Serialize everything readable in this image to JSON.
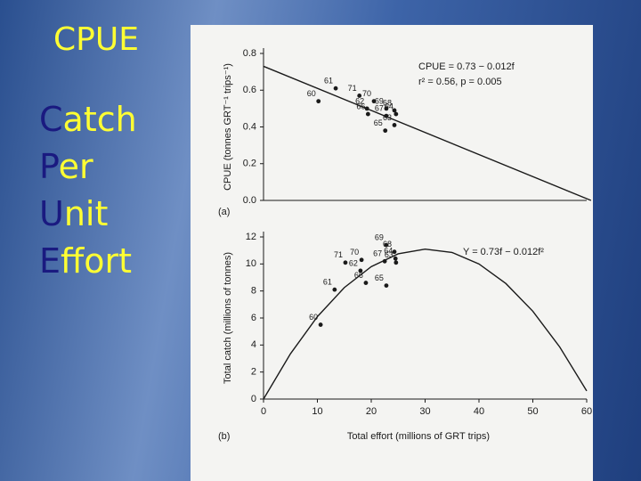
{
  "slide": {
    "title": "CPUE",
    "lines": [
      "Catch",
      "Per",
      "Unit",
      "Effort"
    ]
  },
  "chart_data": [
    {
      "type": "scatter",
      "panel_label": "(a)",
      "y_label": "CPUE (tonnes GRT⁻¹ trips⁻¹)",
      "annotations": [
        "CPUE = 0.73 − 0.012f",
        "r² = 0.56, p = 0.005"
      ],
      "xlim": [
        0,
        60
      ],
      "ylim": [
        0,
        0.8
      ],
      "yticks": [
        {
          "value": 0,
          "label": "0.0"
        },
        0.2,
        0.4,
        0.6,
        0.8
      ],
      "color": "#1a1a1a",
      "points": {
        "labels": [
          "60",
          "61",
          "71",
          "70",
          "62",
          "69",
          "68",
          "66",
          "67",
          "64",
          "63",
          "65"
        ],
        "x": [
          10.2,
          13.4,
          17.8,
          20.5,
          19.2,
          22.8,
          24.3,
          19.4,
          22.8,
          24.6,
          24.3,
          22.6
        ],
        "values": [
          0.54,
          0.61,
          0.57,
          0.54,
          0.5,
          0.5,
          0.49,
          0.47,
          0.46,
          0.47,
          0.41,
          0.38
        ]
      },
      "fit": {
        "x": [
          0,
          60.8
        ],
        "values": [
          0.73,
          0
        ]
      }
    },
    {
      "type": "scatter",
      "panel_label": "(b)",
      "y_label": "Total catch (millions of tonnes)",
      "x_label": "Total effort (millions of GRT trips)",
      "annotations": [
        "Y = 0.73f − 0.012f²"
      ],
      "xlim": [
        0,
        60
      ],
      "ylim": [
        0,
        12
      ],
      "xticks": [
        0,
        10,
        20,
        30,
        40,
        50,
        60
      ],
      "yticks": [
        0,
        2,
        4,
        6,
        8,
        10,
        12
      ],
      "color": "#1a1a1a",
      "points": {
        "labels": [
          "60",
          "61",
          "71",
          "70",
          "62",
          "67",
          "69",
          "68",
          "64",
          "63",
          "66",
          "65"
        ],
        "x": [
          10.6,
          13.2,
          15.2,
          18.2,
          18.0,
          22.5,
          22.8,
          24.3,
          24.5,
          24.6,
          19.0,
          22.8
        ],
        "values": [
          5.5,
          8.1,
          10.1,
          10.3,
          9.5,
          10.2,
          11.4,
          10.9,
          10.4,
          10.1,
          8.6,
          8.4
        ]
      },
      "fit": {
        "x": [
          0,
          5,
          10,
          15,
          20,
          25,
          30,
          35,
          40,
          45,
          50,
          55,
          60
        ],
        "values": [
          0,
          3.35,
          6.1,
          8.25,
          9.8,
          10.75,
          11.1,
          10.85,
          10,
          8.55,
          6.5,
          3.85,
          0.6
        ]
      }
    }
  ]
}
